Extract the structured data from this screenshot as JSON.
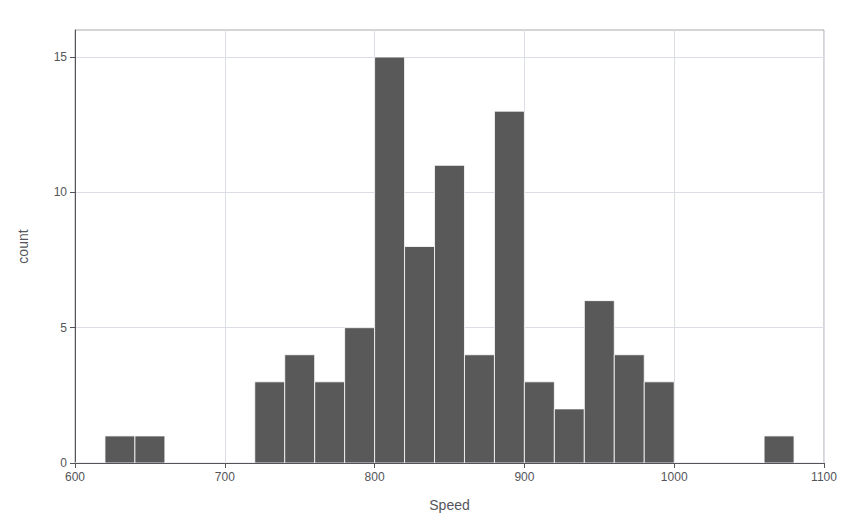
{
  "chart_data": {
    "type": "histogram",
    "xlabel": "Speed",
    "ylabel": "count",
    "bins": [
      600,
      620,
      640,
      660,
      680,
      700,
      720,
      740,
      760,
      780,
      800,
      820,
      840,
      860,
      880,
      900,
      920,
      940,
      960,
      980,
      1000,
      1020,
      1040,
      1060,
      1080,
      1100
    ],
    "values": [
      0,
      1,
      1,
      0,
      0,
      0,
      3,
      4,
      3,
      5,
      15,
      8,
      11,
      4,
      13,
      3,
      2,
      6,
      4,
      3,
      0,
      0,
      0,
      1,
      0
    ],
    "color": "#595959",
    "xlim": [
      600,
      1100
    ],
    "ylim": [
      0,
      16
    ],
    "xticks": [
      600,
      700,
      800,
      900,
      1000,
      1100
    ],
    "yticks": [
      0,
      5,
      10,
      15
    ],
    "grid": true
  }
}
